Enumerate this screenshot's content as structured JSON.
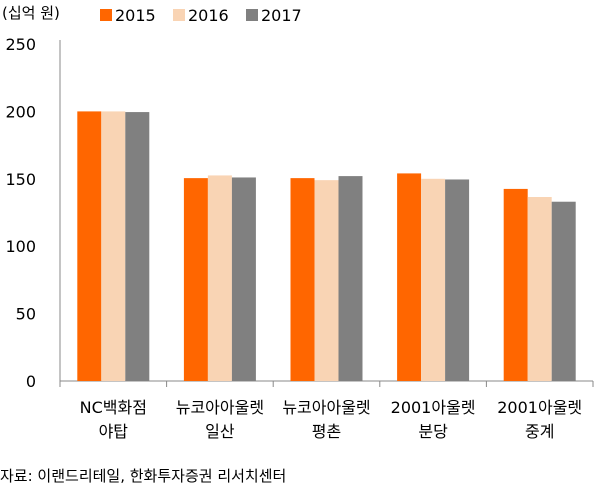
{
  "chart_data": {
    "type": "bar",
    "unit_label": "(십억 원)",
    "categories": [
      [
        "NC백화점",
        "야탑"
      ],
      [
        "뉴코아아울렛",
        "일산"
      ],
      [
        "뉴코아아울렛",
        "평촌"
      ],
      [
        "2001아울렛",
        "분당"
      ],
      [
        "2001아울렛",
        "중계"
      ]
    ],
    "series": [
      {
        "name": "2015",
        "color": "#FF6600",
        "values": [
          200,
          150.5,
          150.5,
          154,
          142.5
        ]
      },
      {
        "name": "2016",
        "color": "#F9D4B4",
        "values": [
          200,
          152.5,
          149,
          150,
          136.5
        ]
      },
      {
        "name": "2017",
        "color": "#808080",
        "values": [
          199.5,
          151,
          152,
          149.5,
          133
        ]
      }
    ],
    "ylim": [
      0,
      250
    ],
    "yticks": [
      0,
      50,
      100,
      150,
      200,
      250
    ],
    "legend_position": "top",
    "grid": false
  },
  "source": "자료: 이랜드리테일, 한화투자증권 리서치센터"
}
